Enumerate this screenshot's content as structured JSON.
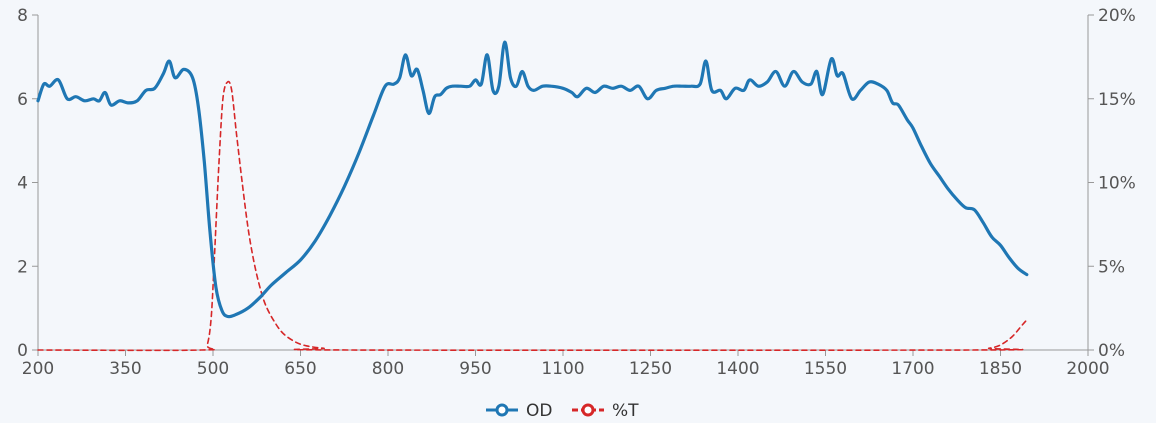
{
  "chart_data": {
    "type": "line",
    "title": "",
    "xlabel": "",
    "ylabel": "",
    "y2label": "",
    "xlim": [
      200,
      2000
    ],
    "ylim": [
      0,
      8
    ],
    "y2lim": [
      0,
      20
    ],
    "x_ticks": [
      200,
      350,
      500,
      650,
      800,
      950,
      1100,
      1250,
      1400,
      1550,
      1700,
      1850,
      2000
    ],
    "y_ticks": [
      0,
      2,
      4,
      6,
      8
    ],
    "y2_ticks": [
      0,
      5,
      10,
      15,
      20
    ],
    "y2_tick_suffix": "%",
    "grid": false,
    "legend": {
      "placement": "bottom-center"
    },
    "series": [
      {
        "name": "OD",
        "axis": "left",
        "color": "#1f77b4",
        "style": "solid",
        "points": [
          [
            200,
            5.95
          ],
          [
            210,
            6.35
          ],
          [
            220,
            6.3
          ],
          [
            235,
            6.45
          ],
          [
            250,
            6.0
          ],
          [
            265,
            6.05
          ],
          [
            280,
            5.95
          ],
          [
            295,
            6.0
          ],
          [
            305,
            5.95
          ],
          [
            315,
            6.15
          ],
          [
            325,
            5.85
          ],
          [
            340,
            5.95
          ],
          [
            355,
            5.9
          ],
          [
            370,
            5.95
          ],
          [
            385,
            6.2
          ],
          [
            400,
            6.25
          ],
          [
            415,
            6.6
          ],
          [
            425,
            6.9
          ],
          [
            435,
            6.5
          ],
          [
            450,
            6.7
          ],
          [
            465,
            6.5
          ],
          [
            475,
            5.8
          ],
          [
            485,
            4.5
          ],
          [
            495,
            2.8
          ],
          [
            505,
            1.5
          ],
          [
            515,
            0.95
          ],
          [
            525,
            0.8
          ],
          [
            540,
            0.85
          ],
          [
            560,
            1.0
          ],
          [
            580,
            1.25
          ],
          [
            600,
            1.55
          ],
          [
            625,
            1.85
          ],
          [
            650,
            2.15
          ],
          [
            675,
            2.6
          ],
          [
            700,
            3.2
          ],
          [
            725,
            3.9
          ],
          [
            750,
            4.7
          ],
          [
            775,
            5.6
          ],
          [
            795,
            6.3
          ],
          [
            810,
            6.35
          ],
          [
            820,
            6.5
          ],
          [
            830,
            7.05
          ],
          [
            840,
            6.55
          ],
          [
            850,
            6.7
          ],
          [
            860,
            6.2
          ],
          [
            870,
            5.65
          ],
          [
            880,
            6.05
          ],
          [
            890,
            6.1
          ],
          [
            900,
            6.25
          ],
          [
            910,
            6.3
          ],
          [
            925,
            6.3
          ],
          [
            940,
            6.3
          ],
          [
            950,
            6.45
          ],
          [
            960,
            6.35
          ],
          [
            970,
            7.05
          ],
          [
            980,
            6.2
          ],
          [
            990,
            6.3
          ],
          [
            1000,
            7.35
          ],
          [
            1010,
            6.5
          ],
          [
            1020,
            6.3
          ],
          [
            1030,
            6.65
          ],
          [
            1040,
            6.3
          ],
          [
            1050,
            6.2
          ],
          [
            1065,
            6.3
          ],
          [
            1080,
            6.3
          ],
          [
            1100,
            6.25
          ],
          [
            1115,
            6.15
          ],
          [
            1125,
            6.05
          ],
          [
            1140,
            6.25
          ],
          [
            1155,
            6.15
          ],
          [
            1170,
            6.3
          ],
          [
            1185,
            6.25
          ],
          [
            1200,
            6.3
          ],
          [
            1215,
            6.2
          ],
          [
            1230,
            6.3
          ],
          [
            1245,
            6.0
          ],
          [
            1260,
            6.2
          ],
          [
            1275,
            6.25
          ],
          [
            1290,
            6.3
          ],
          [
            1305,
            6.3
          ],
          [
            1320,
            6.3
          ],
          [
            1335,
            6.35
          ],
          [
            1345,
            6.9
          ],
          [
            1355,
            6.2
          ],
          [
            1370,
            6.2
          ],
          [
            1380,
            6.0
          ],
          [
            1395,
            6.25
          ],
          [
            1410,
            6.2
          ],
          [
            1420,
            6.45
          ],
          [
            1435,
            6.3
          ],
          [
            1450,
            6.4
          ],
          [
            1465,
            6.65
          ],
          [
            1480,
            6.3
          ],
          [
            1495,
            6.65
          ],
          [
            1510,
            6.4
          ],
          [
            1525,
            6.35
          ],
          [
            1535,
            6.65
          ],
          [
            1545,
            6.1
          ],
          [
            1560,
            6.95
          ],
          [
            1570,
            6.55
          ],
          [
            1580,
            6.6
          ],
          [
            1595,
            6.0
          ],
          [
            1610,
            6.2
          ],
          [
            1625,
            6.4
          ],
          [
            1640,
            6.35
          ],
          [
            1655,
            6.2
          ],
          [
            1665,
            5.9
          ],
          [
            1675,
            5.85
          ],
          [
            1690,
            5.5
          ],
          [
            1700,
            5.3
          ],
          [
            1715,
            4.85
          ],
          [
            1730,
            4.45
          ],
          [
            1745,
            4.15
          ],
          [
            1760,
            3.85
          ],
          [
            1775,
            3.6
          ],
          [
            1790,
            3.4
          ],
          [
            1805,
            3.35
          ],
          [
            1820,
            3.05
          ],
          [
            1835,
            2.7
          ],
          [
            1850,
            2.5
          ],
          [
            1865,
            2.2
          ],
          [
            1880,
            1.95
          ],
          [
            1895,
            1.8
          ]
        ]
      },
      {
        "name": "%T",
        "axis": "right",
        "color": "#d62728",
        "style": "dashed",
        "points": [
          [
            200,
            0
          ],
          [
            480,
            0
          ],
          [
            490,
            0.3
          ],
          [
            497,
            2
          ],
          [
            503,
            6
          ],
          [
            510,
            11
          ],
          [
            517,
            15
          ],
          [
            525,
            16
          ],
          [
            532,
            15.5
          ],
          [
            540,
            13
          ],
          [
            550,
            10
          ],
          [
            560,
            7.3
          ],
          [
            570,
            5.3
          ],
          [
            580,
            3.8
          ],
          [
            590,
            2.7
          ],
          [
            605,
            1.7
          ],
          [
            620,
            1.0
          ],
          [
            640,
            0.5
          ],
          [
            660,
            0.25
          ],
          [
            690,
            0.1
          ],
          [
            730,
            0
          ],
          [
            1800,
            0
          ],
          [
            1830,
            0.1
          ],
          [
            1850,
            0.3
          ],
          [
            1870,
            0.8
          ],
          [
            1885,
            1.4
          ],
          [
            1895,
            1.8
          ]
        ]
      }
    ]
  }
}
